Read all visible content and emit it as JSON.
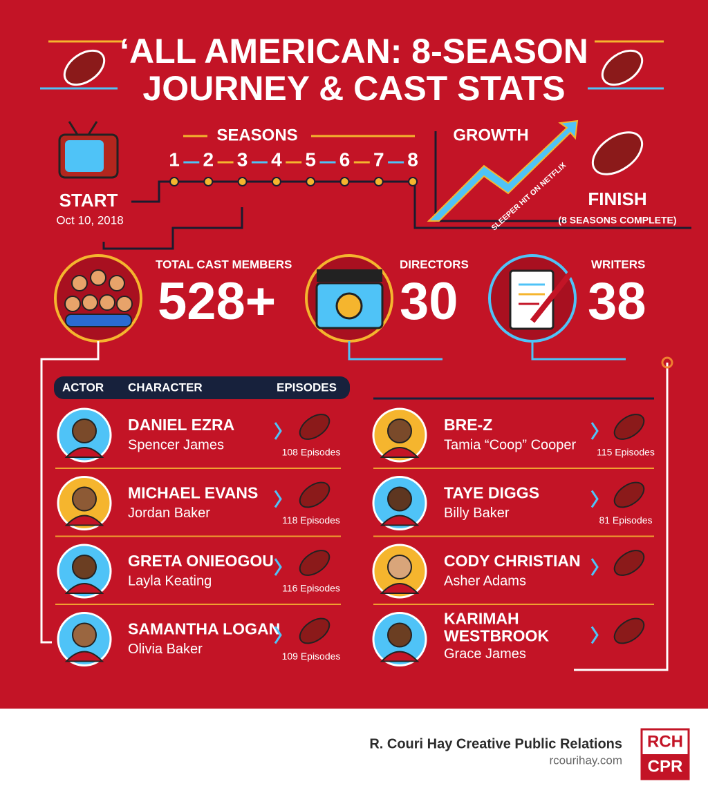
{
  "header": {
    "title_lines": [
      "‘ALL AMERICAN: 8-SEASON",
      "JOURNEY & CAST STATS"
    ]
  },
  "timeline": {
    "start_label": "START",
    "start_date": "Oct 10, 2018",
    "seasons_label": "SEASONS",
    "seasons": [
      1,
      2,
      3,
      4,
      5,
      6,
      7,
      8
    ],
    "growth_label": "GROWTH",
    "growth_note": "SLEEPER HIT ON NETFLIX",
    "finish_label": "FINISH",
    "finish_note": "(8 SEASONS COMPLETE)"
  },
  "stats": [
    {
      "label": "TOTAL CAST MEMBERS",
      "value": "528+"
    },
    {
      "label": "DIRECTORS",
      "value": "30"
    },
    {
      "label": "WRITERS",
      "value": "38"
    }
  ],
  "table": {
    "headers": [
      "ACTOR",
      "CHARACTER",
      "EPISODES"
    ],
    "cast": [
      {
        "actor": "DANIEL EZRA",
        "character": "Spencer James",
        "episodes": "108 Episodes"
      },
      {
        "actor": "MICHAEL EVANS",
        "character": "Jordan Baker",
        "episodes": "118 Episodes"
      },
      {
        "actor": "GRETA ONIEOGOU",
        "character": "Layla Keating",
        "episodes": "116 Episodes"
      },
      {
        "actor": "SAMANTHA LOGAN",
        "character": "Olivia Baker",
        "episodes": "109 Episodes"
      },
      {
        "actor": "BRE-Z",
        "character": "Tamia “Coop” Cooper",
        "episodes": "115 Episodes"
      },
      {
        "actor": "TAYE DIGGS",
        "character": "Billy Baker",
        "episodes": "81 Episodes"
      },
      {
        "actor": "CODY CHRISTIAN",
        "character": "Asher Adams",
        "episodes": ""
      },
      {
        "actor": "KARIMAH WESTBROOK",
        "character": "Grace James"
      }
    ]
  },
  "footer": {
    "company": "R. Couri Hay Creative Public Relations",
    "url": "rcourihay.com",
    "logo_top": "RCH",
    "logo_bottom": "CPR"
  }
}
